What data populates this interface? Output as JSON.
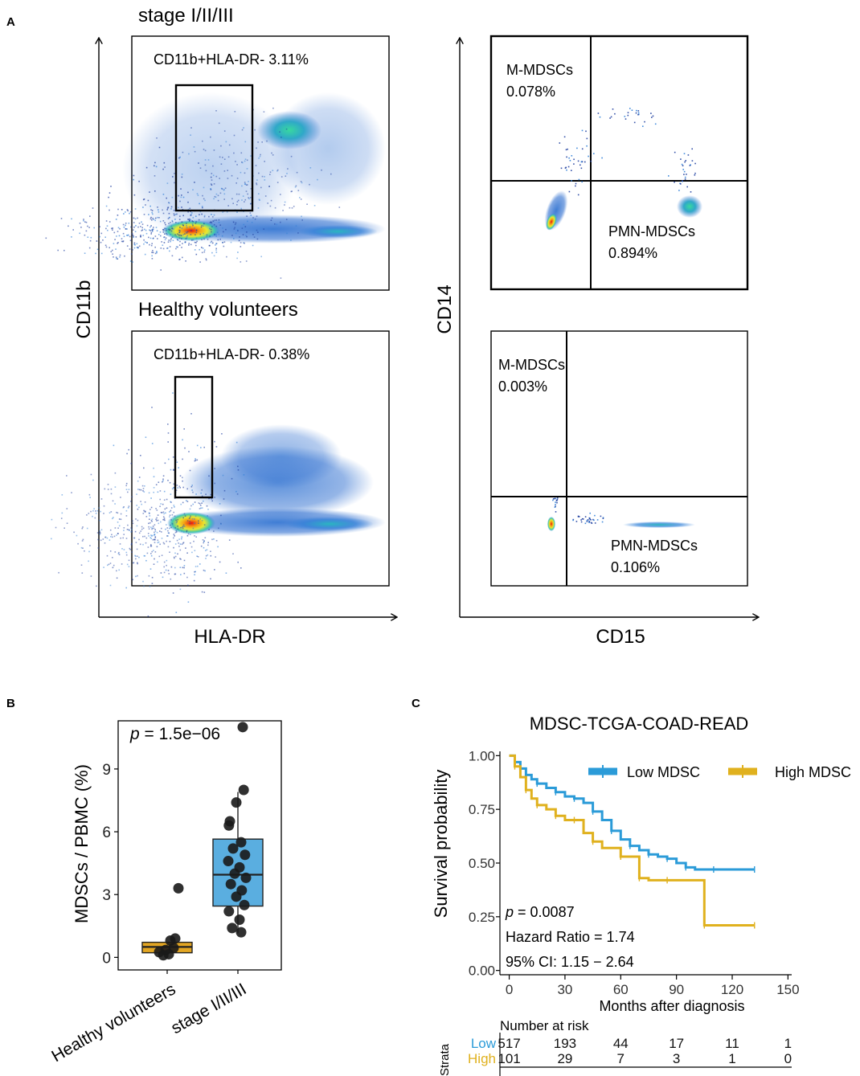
{
  "panel_labels": {
    "a": "A",
    "b": "B",
    "c": "C"
  },
  "colors": {
    "low": "#2b9bd8",
    "high": "#e0b11e",
    "box_low": "#e3a623",
    "box_high": "#5aaee0",
    "point": "#1a1a1a",
    "flow_density": [
      "#1f3fa0",
      "#2f7fd8",
      "#2fd0b0",
      "#f0e030",
      "#e83010"
    ]
  },
  "panel_a": {
    "left": {
      "y_axis_label": "CD11b",
      "x_axis_label": "HLA-DR",
      "top": {
        "title": "stage I/II/III",
        "gate_label": "CD11b+HLA-DR- 3.11%"
      },
      "bottom": {
        "title": "Healthy volunteers",
        "gate_label": "CD11b+HLA-DR- 0.38%"
      }
    },
    "right": {
      "y_axis_label": "CD14",
      "x_axis_label": "CD15",
      "top": {
        "m_mdsc": {
          "name": "M-MDSCs",
          "pct": "0.078%"
        },
        "pmn_mdsc": {
          "name": "PMN-MDSCs",
          "pct": "0.894%"
        }
      },
      "bottom": {
        "m_mdsc": {
          "name": "M-MDSCs",
          "pct": "0.003%"
        },
        "pmn_mdsc": {
          "name": "PMN-MDSCs",
          "pct": "0.106%"
        }
      }
    }
  },
  "chart_data": [
    {
      "type": "scatter",
      "panel": "B",
      "subtype": "boxplot-with-jitter",
      "title": "",
      "annotation": {
        "p_symbol": "p",
        "p_rest": " = 1.5e−06"
      },
      "ylabel": "MDSCs / PBMC (%)",
      "xlabel": "",
      "ylim": [
        -0.6,
        11.3
      ],
      "yticks": [
        0,
        3,
        6,
        9
      ],
      "ytick_labels": [
        "0",
        "3",
        "6",
        "9"
      ],
      "categories": [
        "Healthy volunteers",
        "stage I/II/III"
      ],
      "boxes": [
        {
          "name": "Healthy volunteers",
          "q1": 0.22,
          "median": 0.5,
          "q3": 0.72,
          "whisker_low": 0.22,
          "whisker_high": 0.72
        },
        {
          "name": "stage I/II/III",
          "q1": 2.45,
          "median": 3.95,
          "q3": 5.65,
          "whisker_low": 1.15,
          "whisker_high": 7.9
        }
      ],
      "points": [
        {
          "group": 0,
          "y": 3.3,
          "j": 0.35
        },
        {
          "group": 0,
          "y": 0.9,
          "j": 0.25
        },
        {
          "group": 0,
          "y": 0.8,
          "j": 0.1
        },
        {
          "group": 0,
          "y": 0.45,
          "j": 0.2
        },
        {
          "group": 0,
          "y": 0.35,
          "j": -0.05
        },
        {
          "group": 0,
          "y": 0.25,
          "j": -0.25
        },
        {
          "group": 0,
          "y": 0.15,
          "j": 0.05
        },
        {
          "group": 0,
          "y": 0.1,
          "j": -0.12
        },
        {
          "group": 1,
          "y": 11.0,
          "j": 0.15
        },
        {
          "group": 1,
          "y": 8.0,
          "j": 0.18
        },
        {
          "group": 1,
          "y": 7.4,
          "j": -0.05
        },
        {
          "group": 1,
          "y": 6.5,
          "j": -0.25
        },
        {
          "group": 1,
          "y": 6.3,
          "j": -0.28
        },
        {
          "group": 1,
          "y": 5.5,
          "j": 0.1
        },
        {
          "group": 1,
          "y": 5.2,
          "j": -0.15
        },
        {
          "group": 1,
          "y": 4.9,
          "j": 0.22
        },
        {
          "group": 1,
          "y": 4.6,
          "j": -0.3
        },
        {
          "group": 1,
          "y": 4.3,
          "j": 0.05
        },
        {
          "group": 1,
          "y": 4.0,
          "j": -0.1
        },
        {
          "group": 1,
          "y": 3.8,
          "j": 0.25
        },
        {
          "group": 1,
          "y": 3.5,
          "j": -0.22
        },
        {
          "group": 1,
          "y": 3.2,
          "j": 0.12
        },
        {
          "group": 1,
          "y": 2.9,
          "j": -0.05
        },
        {
          "group": 1,
          "y": 2.5,
          "j": 0.2
        },
        {
          "group": 1,
          "y": 2.2,
          "j": -0.28
        },
        {
          "group": 1,
          "y": 1.8,
          "j": 0.05
        },
        {
          "group": 1,
          "y": 1.4,
          "j": -0.18
        },
        {
          "group": 1,
          "y": 1.2,
          "j": 0.1
        }
      ]
    },
    {
      "type": "line",
      "panel": "C",
      "subtype": "kaplan-meier",
      "title": "MDSC-TCGA-COAD-READ",
      "xlabel": "Months after diagnosis",
      "ylabel": "Survival probability",
      "xlim": [
        -5,
        152
      ],
      "ylim": [
        -0.02,
        1.02
      ],
      "xticks": [
        0,
        30,
        60,
        90,
        120,
        150
      ],
      "xtick_labels": [
        "0",
        "30",
        "60",
        "90",
        "120",
        "150"
      ],
      "yticks": [
        0,
        0.25,
        0.5,
        0.75,
        1.0
      ],
      "ytick_labels": [
        "0.00",
        "0.25",
        "0.50",
        "0.75",
        "1.00"
      ],
      "series": [
        {
          "name": "Low MDSC",
          "legend_label": "Low MDSC",
          "color_key": "low",
          "x": [
            0,
            3,
            6,
            9,
            12,
            15,
            20,
            25,
            30,
            35,
            40,
            45,
            50,
            55,
            60,
            65,
            70,
            75,
            80,
            85,
            90,
            95,
            100,
            110,
            120,
            132
          ],
          "y": [
            1.0,
            0.97,
            0.94,
            0.91,
            0.89,
            0.87,
            0.85,
            0.83,
            0.81,
            0.8,
            0.78,
            0.74,
            0.7,
            0.65,
            0.61,
            0.58,
            0.56,
            0.54,
            0.53,
            0.52,
            0.5,
            0.48,
            0.47,
            0.47,
            0.47,
            0.47
          ]
        },
        {
          "name": "High MDSC",
          "legend_label": "High MDSC",
          "color_key": "high",
          "x": [
            0,
            3,
            6,
            9,
            12,
            15,
            20,
            25,
            30,
            35,
            40,
            45,
            50,
            60,
            65,
            70,
            75,
            85,
            100,
            105,
            120,
            132
          ],
          "y": [
            1.0,
            0.95,
            0.9,
            0.84,
            0.8,
            0.77,
            0.75,
            0.72,
            0.7,
            0.7,
            0.64,
            0.6,
            0.57,
            0.53,
            0.53,
            0.43,
            0.42,
            0.42,
            0.42,
            0.21,
            0.21,
            0.21
          ]
        }
      ],
      "stats": {
        "p_symbol": "p",
        "p_rest": " = 0.0087",
        "hr": "Hazard Ratio = 1.74",
        "ci": "95% CI: 1.15 − 2.64"
      },
      "risk_table": {
        "title": "Number at risk",
        "strata_label": "Strata",
        "rows": [
          {
            "label": "Low",
            "color_key": "low",
            "values": [
              "517",
              "193",
              "44",
              "17",
              "11",
              "1"
            ]
          },
          {
            "label": "High",
            "color_key": "high",
            "values": [
              "101",
              "29",
              "7",
              "3",
              "1",
              "0"
            ]
          }
        ]
      }
    }
  ]
}
